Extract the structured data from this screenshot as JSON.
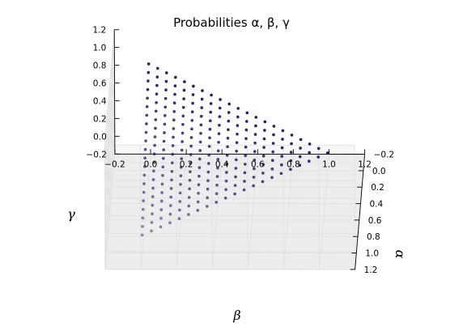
{
  "chart_data": {
    "type": "scatter",
    "projection": "3d",
    "title": "Probabilities α, β, γ",
    "xlabel": "β",
    "ylabel": "α",
    "zlabel": "γ",
    "x_ticks": [
      "−0.2",
      "0.0",
      "0.2",
      "0.4",
      "0.6",
      "0.8",
      "1.0",
      "1.2"
    ],
    "y_ticks": [
      "−0.2",
      "0.0",
      "0.2",
      "0.4",
      "0.6",
      "0.8",
      "1.0",
      "1.2"
    ],
    "z_ticks": [
      "−0.2",
      "0.0",
      "0.2",
      "0.4",
      "0.6",
      "0.8",
      "1.0",
      "1.2"
    ],
    "xlim": [
      -0.2,
      1.2
    ],
    "ylim": [
      -0.2,
      1.2
    ],
    "zlim": [
      -0.2,
      1.2
    ],
    "grid": true,
    "marker_color": "#1f1f6e",
    "point_set": "all (β, α, γ) with β, α, γ in {0.00, 0.05, …, 1.00} and β + α + γ = 1",
    "grid_step": 0.05,
    "sum": 1.0
  }
}
